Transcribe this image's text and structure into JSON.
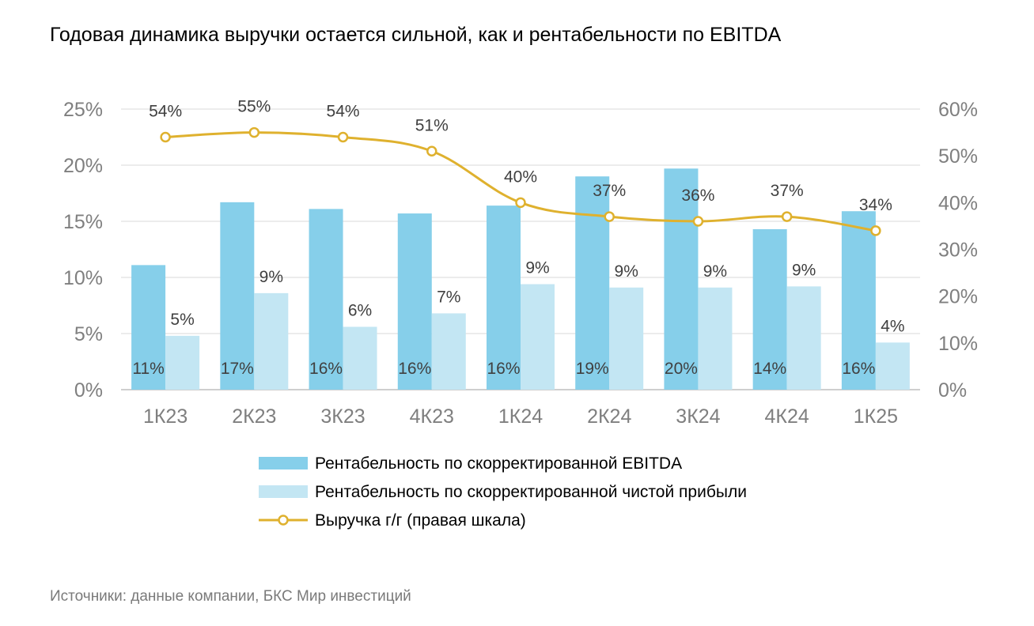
{
  "title": "Годовая динамика выручки остается сильной, как и рентабельности по EBITDA",
  "source": "Источники: данные компании, БКС Мир инвестиций",
  "chart_data": {
    "type": "bar",
    "categories": [
      "1К23",
      "2К23",
      "3К23",
      "4К23",
      "1К24",
      "2К24",
      "3К24",
      "4К24",
      "1К25"
    ],
    "series": [
      {
        "name": "Рентабельность по скорректированной EBITDA",
        "kind": "bar",
        "axis": "left",
        "color": "#86cfea",
        "values": [
          11.1,
          16.7,
          16.1,
          15.7,
          16.4,
          19.0,
          19.7,
          14.3,
          15.9
        ],
        "labels": [
          "11%",
          "17%",
          "16%",
          "16%",
          "16%",
          "19%",
          "20%",
          "14%",
          "16%"
        ]
      },
      {
        "name": "Рентабельность по скорректированной чистой прибыли",
        "kind": "bar",
        "axis": "left",
        "color": "#c3e6f3",
        "values": [
          4.8,
          8.6,
          5.6,
          6.8,
          9.4,
          9.1,
          9.1,
          9.2,
          4.2
        ],
        "labels": [
          "5%",
          "9%",
          "6%",
          "7%",
          "9%",
          "9%",
          "9%",
          "9%",
          "4%"
        ]
      },
      {
        "name": "Выручка г/г (правая шкала)",
        "kind": "line",
        "axis": "right",
        "color": "#dfb12e",
        "values": [
          54,
          55,
          54,
          51,
          40,
          37,
          36,
          37,
          34
        ],
        "labels": [
          "54%",
          "55%",
          "54%",
          "51%",
          "40%",
          "37%",
          "36%",
          "37%",
          "34%"
        ]
      }
    ],
    "y_left": {
      "ylim": [
        0,
        25
      ],
      "ticks": [
        "0%",
        "5%",
        "10%",
        "15%",
        "20%",
        "25%"
      ]
    },
    "y_right": {
      "ylim": [
        0,
        60
      ],
      "ticks": [
        "0%",
        "10%",
        "20%",
        "30%",
        "40%",
        "50%",
        "60%"
      ]
    },
    "grid": true,
    "legend_position": "bottom"
  }
}
